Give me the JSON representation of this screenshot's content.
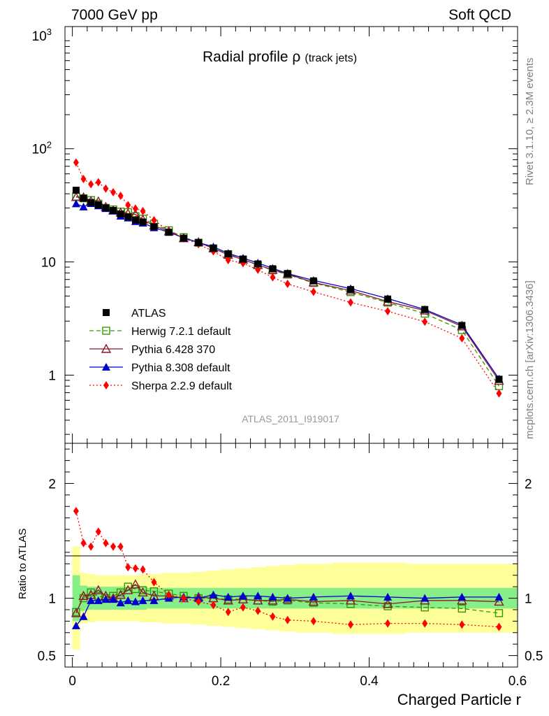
{
  "header": {
    "energy_label": "7000 GeV pp",
    "category_label": "Soft QCD"
  },
  "side_text": {
    "rivet": "Rivet 3.1.10, ≥ 2.3M events",
    "mcplots": "mcplots.cern.ch [arXiv:1306.3436]"
  },
  "chart_data": {
    "type": "line",
    "title": "Radial profile ρ",
    "title_suffix": "(track jets)",
    "analysis_id": "ATLAS_2011_I919017",
    "xlabel": "Charged Particle r",
    "ylabel_ratio": "Ratio to ATLAS",
    "xlim": [
      -0.01,
      0.6
    ],
    "ylim_main": [
      0.25,
      1200
    ],
    "ylim_ratio": [
      0.4,
      2.35
    ],
    "main_y_ticks": [
      {
        "label": "1",
        "sup": "",
        "value": 1
      },
      {
        "label": "10",
        "sup": "",
        "value": 10
      },
      {
        "label": "10",
        "sup": "2",
        "value": 100
      },
      {
        "label": "10",
        "sup": "3",
        "value": 1000
      }
    ],
    "ratio_y_ticks": [
      {
        "label": "0.5",
        "value": 0.5
      },
      {
        "label": "1",
        "value": 1
      },
      {
        "label": "2",
        "value": 2
      }
    ],
    "x_ticks": [
      {
        "label": "0",
        "value": 0
      },
      {
        "label": "0.2",
        "value": 0.2
      },
      {
        "label": "0.4",
        "value": 0.4
      },
      {
        "label": "0.6",
        "value": 0.6
      }
    ],
    "x": [
      0.005,
      0.015,
      0.025,
      0.035,
      0.045,
      0.055,
      0.065,
      0.075,
      0.085,
      0.095,
      0.11,
      0.13,
      0.15,
      0.17,
      0.19,
      0.21,
      0.23,
      0.25,
      0.27,
      0.29,
      0.325,
      0.375,
      0.425,
      0.475,
      0.525,
      0.575
    ],
    "bins": [
      [
        0,
        0.01
      ],
      [
        0.01,
        0.02
      ],
      [
        0.02,
        0.03
      ],
      [
        0.03,
        0.04
      ],
      [
        0.04,
        0.05
      ],
      [
        0.05,
        0.06
      ],
      [
        0.06,
        0.07
      ],
      [
        0.07,
        0.08
      ],
      [
        0.08,
        0.09
      ],
      [
        0.09,
        0.1
      ],
      [
        0.1,
        0.12
      ],
      [
        0.12,
        0.14
      ],
      [
        0.14,
        0.16
      ],
      [
        0.16,
        0.18
      ],
      [
        0.18,
        0.2
      ],
      [
        0.2,
        0.22
      ],
      [
        0.22,
        0.24
      ],
      [
        0.24,
        0.26
      ],
      [
        0.26,
        0.28
      ],
      [
        0.28,
        0.3
      ],
      [
        0.3,
        0.35
      ],
      [
        0.35,
        0.4
      ],
      [
        0.4,
        0.45
      ],
      [
        0.45,
        0.5
      ],
      [
        0.5,
        0.55
      ],
      [
        0.55,
        0.6
      ]
    ],
    "data": {
      "name": "ATLAS",
      "color": "#000000",
      "values": [
        43.0,
        36.5,
        33.5,
        32.0,
        30.0,
        28.5,
        26.5,
        25.0,
        23.5,
        22.5,
        20.5,
        18.3,
        16.2,
        14.8,
        13.2,
        11.8,
        10.6,
        9.6,
        8.7,
        7.9,
        6.8,
        5.7,
        4.7,
        3.8,
        2.75,
        0.92
      ]
    },
    "band_green": [
      0.2,
      0.11,
      0.1,
      0.1,
      0.1,
      0.1,
      0.1,
      0.1,
      0.1,
      0.1,
      0.09,
      0.09,
      0.09,
      0.09,
      0.09,
      0.09,
      0.09,
      0.09,
      0.09,
      0.09,
      0.09,
      0.09,
      0.09,
      0.09,
      0.09,
      0.09
    ],
    "band_yellow": [
      0.45,
      0.22,
      0.21,
      0.2,
      0.2,
      0.2,
      0.2,
      0.2,
      0.2,
      0.21,
      0.21,
      0.22,
      0.22,
      0.23,
      0.24,
      0.25,
      0.26,
      0.27,
      0.28,
      0.29,
      0.3,
      0.31,
      0.31,
      0.3,
      0.3,
      0.3
    ],
    "series": [
      {
        "name": "Herwig 7.2.1 default",
        "color": "#339900",
        "marker": "open-square",
        "dash": "6,4",
        "ratio": [
          0.88,
          1.0,
          1.05,
          1.02,
          1.0,
          1.02,
          1.05,
          1.1,
          1.08,
          1.07,
          1.06,
          1.04,
          1.02,
          1.0,
          1.0,
          0.99,
          0.99,
          0.98,
          0.97,
          0.98,
          0.96,
          0.95,
          0.93,
          0.92,
          0.91,
          0.87
        ]
      },
      {
        "name": "Pythia 6.428 370",
        "color": "#8b1a2e",
        "marker": "open-triangle",
        "dash": "",
        "ratio": [
          0.87,
          1.02,
          1.03,
          1.07,
          1.02,
          1.0,
          1.03,
          1.07,
          1.12,
          1.05,
          1.02,
          1.02,
          1.0,
          1.01,
          1.0,
          0.98,
          0.99,
          0.98,
          0.98,
          0.99,
          0.97,
          0.98,
          0.95,
          0.98,
          0.98,
          0.97
        ]
      },
      {
        "name": "Pythia 8.308 default",
        "color": "#0000cc",
        "marker": "filled-triangle",
        "dash": "",
        "ratio": [
          0.76,
          0.84,
          0.98,
          0.98,
          0.99,
          0.99,
          0.96,
          0.98,
          0.97,
          0.98,
          0.98,
          1.0,
          1.01,
          1.0,
          1.03,
          1.01,
          1.02,
          1.02,
          1.01,
          1.0,
          1.01,
          1.02,
          1.01,
          1.0,
          1.01,
          1.01
        ]
      },
      {
        "name": "Sherpa 2.2.9 default",
        "color": "#ff0000",
        "marker": "filled-diamond",
        "dash": "2,3",
        "ratio": [
          1.76,
          1.48,
          1.45,
          1.58,
          1.48,
          1.45,
          1.45,
          1.27,
          1.26,
          1.25,
          1.14,
          1.03,
          1.0,
          0.97,
          0.94,
          0.88,
          0.92,
          0.89,
          0.84,
          0.81,
          0.8,
          0.77,
          0.78,
          0.78,
          0.77,
          0.75
        ]
      }
    ]
  }
}
